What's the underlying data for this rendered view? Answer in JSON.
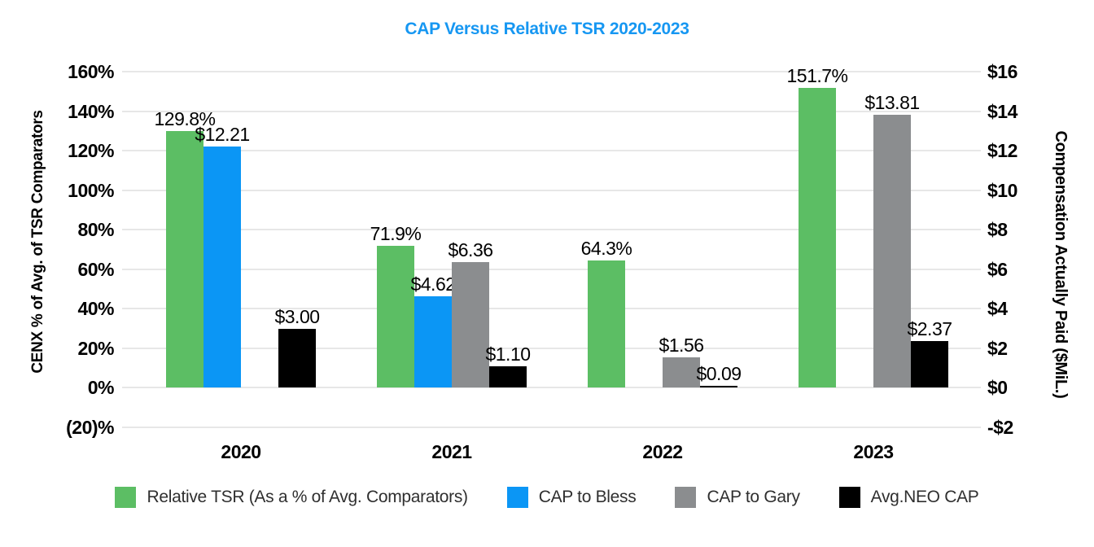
{
  "title_color": "#1697f2",
  "chart_data": {
    "type": "bar",
    "title": "CAP Versus Relative TSR 2020-2023",
    "categories": [
      "2020",
      "2021",
      "2022",
      "2023"
    ],
    "left_axis": {
      "label": "CENX % of Avg. of TSR Comparators",
      "min": -20,
      "max": 160,
      "step": 20,
      "tick_labels": [
        "160%",
        "140%",
        "120%",
        "100%",
        "80%",
        "60%",
        "40%",
        "20%",
        "0%",
        "(20)%"
      ]
    },
    "right_axis": {
      "label": "Compensation Actually Paid ($MiL.)",
      "min": -2,
      "max": 16,
      "step": 2,
      "tick_labels": [
        "$16",
        "$14",
        "$12",
        "$10",
        "$8",
        "$6",
        "$4",
        "$2",
        "$0",
        "-$2"
      ]
    },
    "grid": true,
    "legend_position": "bottom",
    "series": [
      {
        "name": "Relative TSR (As a % of Avg. Comparators)",
        "axis": "left",
        "color": "#5cbe64",
        "values": [
          129.8,
          71.9,
          64.3,
          151.7
        ],
        "labels": [
          "129.8%",
          "71.9%",
          "64.3%",
          "151.7%"
        ]
      },
      {
        "name": "CAP to Bless",
        "axis": "right",
        "color": "#0b96f5",
        "values": [
          12.21,
          4.62,
          null,
          null
        ],
        "labels": [
          "$12.21",
          "$4.62",
          null,
          null
        ]
      },
      {
        "name": "CAP to Gary",
        "axis": "right",
        "color": "#8b8d8f",
        "values": [
          null,
          6.36,
          1.56,
          13.81
        ],
        "labels": [
          null,
          "$6.36",
          "$1.56",
          "$13.81"
        ]
      },
      {
        "name": "Avg.NEO CAP",
        "axis": "right",
        "color": "#000000",
        "values": [
          3.0,
          1.1,
          0.09,
          2.37
        ],
        "labels": [
          "$3.00",
          "$1.10",
          "$0.09",
          "$2.37"
        ]
      }
    ]
  }
}
